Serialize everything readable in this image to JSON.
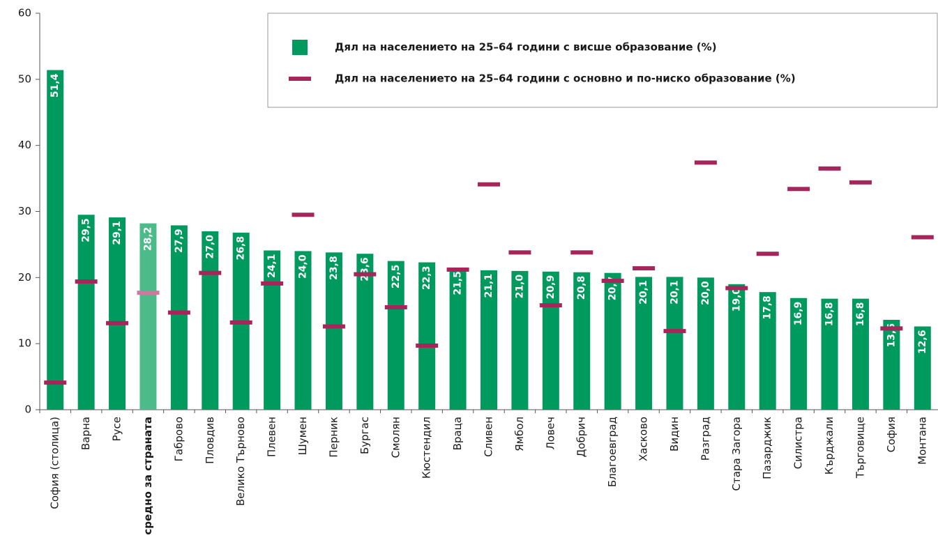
{
  "chart_data": {
    "type": "bar",
    "categories": [
      "София (столица)",
      "Варна",
      "Русе",
      "средно за страната",
      "Габрово",
      "Пловдив",
      "Велико Търново",
      "Плевен",
      "Шумен",
      "Перник",
      "Бургас",
      "Смолян",
      "Кюстендил",
      "Враца",
      "Сливен",
      "Ямбол",
      "Ловеч",
      "Добрич",
      "Благоевград",
      "Хасково",
      "Видин",
      "Разград",
      "Стара Загора",
      "Пазарджик",
      "Силистра",
      "Кърджали",
      "Търговище",
      "София",
      "Монтана"
    ],
    "highlight": "средно за страната",
    "series": [
      {
        "name": "Дял на населението на 25–64 години с висше образование (%)",
        "mark": "bar",
        "color": "#009a5e",
        "highlight_color": "#4dba8a",
        "values": [
          51.4,
          29.5,
          29.1,
          28.2,
          27.9,
          27.0,
          26.8,
          24.1,
          24.0,
          23.8,
          23.6,
          22.5,
          22.3,
          21.5,
          21.1,
          21.0,
          20.9,
          20.8,
          20.7,
          20.1,
          20.1,
          20.0,
          19.0,
          17.8,
          16.9,
          16.8,
          16.8,
          13.6,
          12.6
        ],
        "value_labels": [
          "51,4",
          "29,5",
          "29,1",
          "28,2",
          "27,9",
          "27,0",
          "26,8",
          "24,1",
          "24,0",
          "23,8",
          "23,6",
          "22,5",
          "22,3",
          "21,5",
          "21,1",
          "21,0",
          "20,9",
          "20,8",
          "20,7",
          "20,1",
          "20,1",
          "20,0",
          "19,0",
          "17,8",
          "16,9",
          "16,8",
          "16,8",
          "13,6",
          "12,6"
        ]
      },
      {
        "name": "Дял на населението на 25–64 години с основно и по-ниско образование (%)",
        "mark": "dash",
        "color": "#a6265c",
        "highlight_color": "#cc7aa0",
        "values": [
          4.1,
          19.4,
          13.1,
          17.7,
          14.7,
          20.7,
          13.2,
          19.1,
          29.5,
          12.6,
          20.5,
          15.5,
          9.7,
          21.2,
          34.1,
          23.8,
          15.8,
          23.8,
          19.5,
          21.4,
          11.9,
          37.4,
          18.4,
          23.6,
          33.4,
          36.5,
          34.4,
          12.3,
          26.1
        ]
      }
    ],
    "ylim": [
      0,
      60
    ],
    "yticks": [
      0,
      10,
      20,
      30,
      40,
      50,
      60
    ],
    "grid": false,
    "legend": "top-right"
  }
}
